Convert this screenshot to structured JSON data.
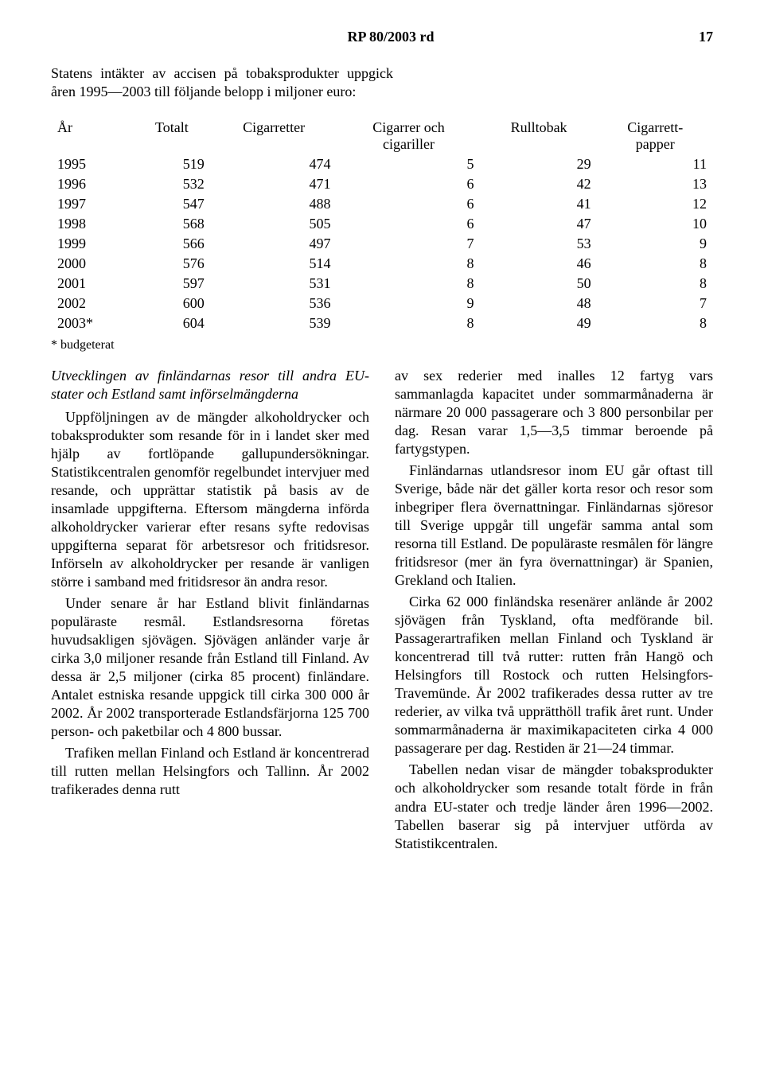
{
  "header": {
    "doc_title": "RP 80/2003 rd",
    "page_number": "17"
  },
  "intro_text": "Statens intäkter av accisen på tobaksprodukter uppgick åren 1995—2003 till följande belopp i miljoner euro:",
  "table": {
    "type": "table",
    "background_color": "#ffffff",
    "text_color": "#000000",
    "font_size_pt": 13,
    "columns": [
      {
        "key": "year",
        "label": "År",
        "align": "left"
      },
      {
        "key": "totalt",
        "label": "Totalt",
        "align": "right"
      },
      {
        "key": "cigaretter",
        "label": "Cigarretter",
        "align": "right"
      },
      {
        "key": "cigarrer",
        "label_line1": "Cigarrer och",
        "label_line2": "cigariller",
        "align": "right"
      },
      {
        "key": "rulltobak",
        "label": "Rulltobak",
        "align": "right"
      },
      {
        "key": "papper",
        "label_line1": "Cigarrett-",
        "label_line2": "papper",
        "align": "right"
      }
    ],
    "rows": [
      {
        "year": "1995",
        "totalt": "519",
        "cigaretter": "474",
        "cigarrer": "5",
        "rulltobak": "29",
        "papper": "11"
      },
      {
        "year": "1996",
        "totalt": "532",
        "cigaretter": "471",
        "cigarrer": "6",
        "rulltobak": "42",
        "papper": "13"
      },
      {
        "year": "1997",
        "totalt": "547",
        "cigaretter": "488",
        "cigarrer": "6",
        "rulltobak": "41",
        "papper": "12"
      },
      {
        "year": "1998",
        "totalt": "568",
        "cigaretter": "505",
        "cigarrer": "6",
        "rulltobak": "47",
        "papper": "10"
      },
      {
        "year": "1999",
        "totalt": "566",
        "cigaretter": "497",
        "cigarrer": "7",
        "rulltobak": "53",
        "papper": "9"
      },
      {
        "year": "2000",
        "totalt": "576",
        "cigaretter": "514",
        "cigarrer": "8",
        "rulltobak": "46",
        "papper": "8"
      },
      {
        "year": "2001",
        "totalt": "597",
        "cigaretter": "531",
        "cigarrer": "8",
        "rulltobak": "50",
        "papper": "8"
      },
      {
        "year": "2002",
        "totalt": "600",
        "cigaretter": "536",
        "cigarrer": "9",
        "rulltobak": "48",
        "papper": "7"
      },
      {
        "year": "2003*",
        "totalt": "604",
        "cigaretter": "539",
        "cigarrer": "8",
        "rulltobak": "49",
        "papper": "8"
      }
    ],
    "footnote": "* budgeterat"
  },
  "body": {
    "left": {
      "subheading": "Utvecklingen av finländarnas resor till andra EU-stater och Estland samt införselmängderna",
      "paragraphs": [
        "Uppföljningen av de mängder alkoholdrycker och tobaksprodukter som resande för in i landet sker med hjälp av fortlöpande gallupundersökningar. Statistikcentralen genomför regelbundet intervjuer med resande, och upprättar statistik på basis av de insamlade uppgifterna. Eftersom mängderna införda alkoholdrycker varierar efter resans syfte redovisas uppgifterna separat för arbetsresor och fritidsresor. Införseln av alkoholdrycker per resande är vanligen större i samband med fritidsresor än andra resor.",
        "Under senare år har Estland blivit finländarnas populäraste resmål. Estlandsresorna företas huvudsakligen sjövägen. Sjövägen anländer varje år cirka 3,0 miljoner resande från Estland till Finland. Av dessa är 2,5 miljoner (cirka 85 procent) finländare. Antalet estniska resande uppgick till cirka 300 000 år 2002. År 2002 transporterade Estlandsfärjorna 125 700 person- och paketbilar och 4 800 bussar.",
        "Trafiken mellan Finland och Estland är koncentrerad till rutten mellan Helsingfors och Tallinn. År 2002 trafikerades denna rutt"
      ]
    },
    "right": {
      "paragraphs": [
        "av sex rederier med inalles 12 fartyg vars sammanlagda kapacitet under sommarmånaderna är närmare 20 000 passagerare och 3 800 personbilar per dag. Resan varar 1,5—3,5 timmar beroende på fartygstypen.",
        "Finländarnas utlandsresor inom EU går oftast till Sverige, både när det gäller korta resor och resor som inbegriper flera övernattningar. Finländarnas sjöresor till Sverige uppgår till ungefär samma antal som resorna till Estland. De populäraste resmålen för längre fritidsresor (mer än fyra övernattningar) är Spanien, Grekland och Italien.",
        "Cirka 62 000 finländska resenärer anlände år 2002 sjövägen från Tyskland, ofta medförande bil. Passagerartrafiken mellan Finland och Tyskland är koncentrerad till två rutter: rutten från Hangö och Helsingfors till Rostock och rutten Helsingfors-Travemünde. År 2002 trafikerades dessa rutter av tre rederier, av vilka två upprätthöll trafik året runt. Under sommarmånaderna är maximikapaciteten cirka 4 000 passagerare per dag. Restiden är 21—24 timmar.",
        "Tabellen nedan visar de mängder tobaksprodukter och alkoholdrycker som resande totalt förde in från andra EU-stater och tredje länder åren 1996—2002. Tabellen baserar sig på intervjuer utförda av Statistikcentralen."
      ]
    }
  }
}
